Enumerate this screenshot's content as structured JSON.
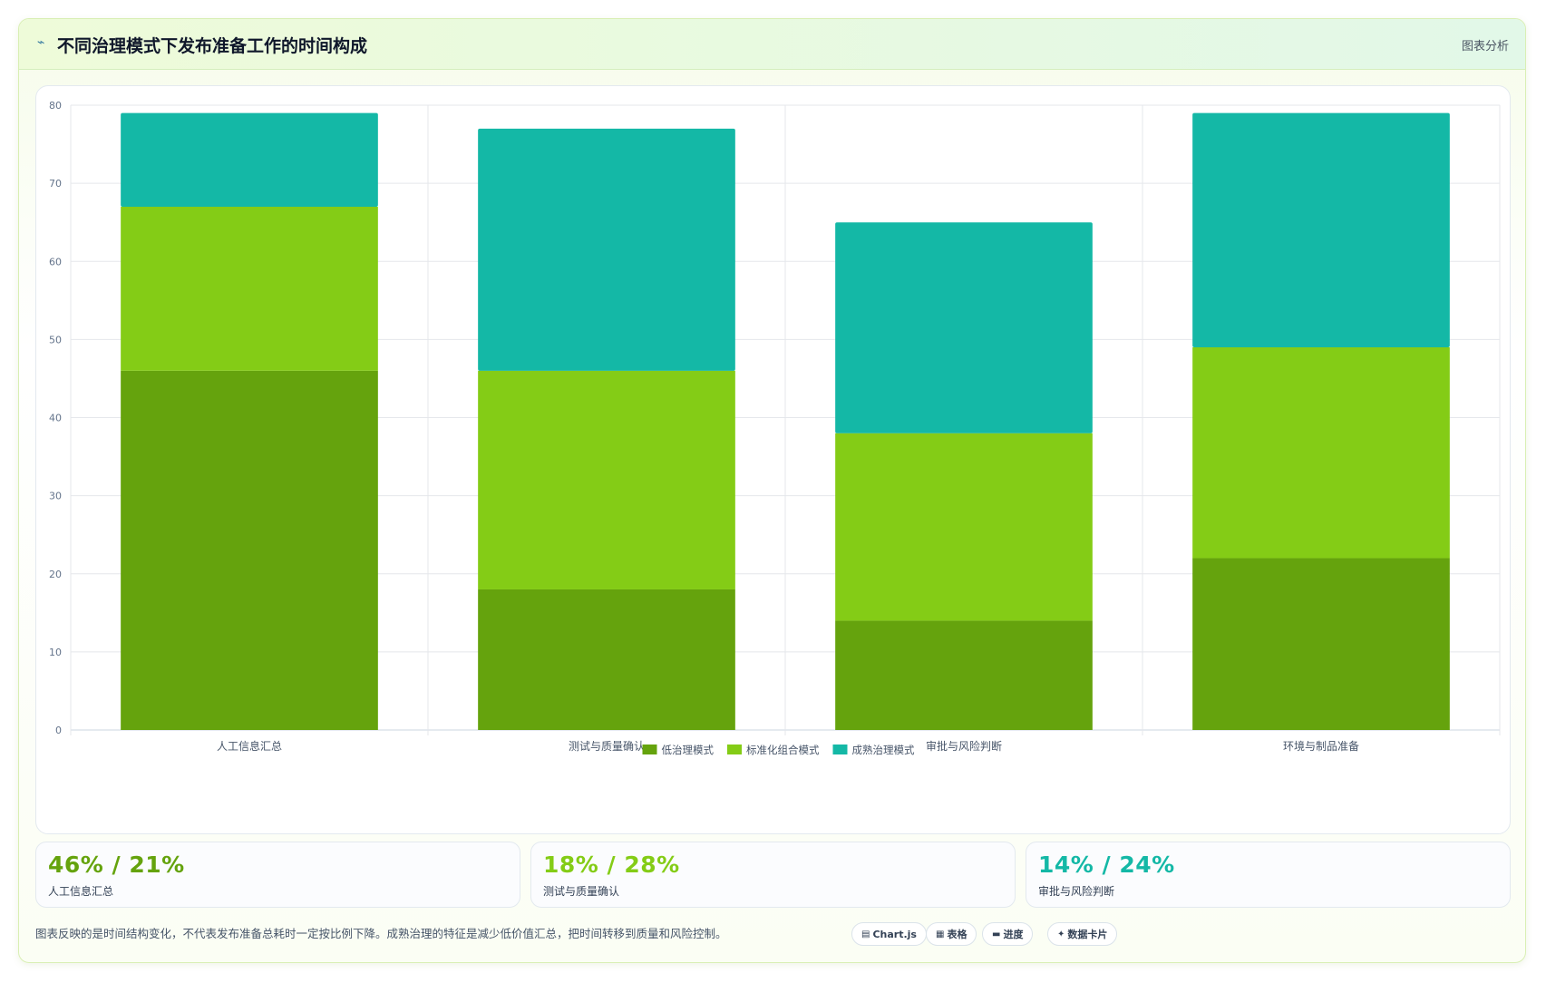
{
  "header": {
    "icon": "wave-icon",
    "title": "不同治理模式下发布准备工作的时间构成",
    "right_label": "图表分析"
  },
  "colors": {
    "low": "#65a30d",
    "standard": "#84cc16",
    "mature": "#14b8a6"
  },
  "chart_data": {
    "type": "bar",
    "stacked": true,
    "categories": [
      "人工信息汇总",
      "测试与质量确认",
      "审批与风险判断",
      "环境与制品准备"
    ],
    "series": [
      {
        "name": "低治理模式",
        "color": "#65a30d",
        "values": [
          46,
          18,
          14,
          22
        ]
      },
      {
        "name": "标准化组合模式",
        "color": "#84cc16",
        "values": [
          21,
          28,
          24,
          27
        ]
      },
      {
        "name": "成熟治理模式",
        "color": "#14b8a6",
        "values": [
          12,
          31,
          27,
          30
        ]
      }
    ],
    "ylim": [
      0,
      80
    ],
    "yticks": [
      0,
      10,
      20,
      30,
      40,
      50,
      60,
      70,
      80
    ],
    "grid": true,
    "legend": "bottom",
    "xlabel": "",
    "ylabel": ""
  },
  "stats": [
    {
      "value": "46% / 21%",
      "label": "人工信息汇总",
      "color": "#65a30d"
    },
    {
      "value": "18% / 28%",
      "label": "测试与质量确认",
      "color": "#84cc16"
    },
    {
      "value": "14% / 24%",
      "label": "审批与风险判断",
      "color": "#14b8a6"
    }
  ],
  "footnote": "图表反映的是时间结构变化，不代表发布准备总耗时一定按比例下降。成熟治理的特征是减少低价值汇总，把时间转移到质量和风险控制。",
  "tags": [
    {
      "icon": "chart-icon",
      "glyph": "▤",
      "label": "Chart.js"
    },
    {
      "icon": "table-icon",
      "glyph": "▦",
      "label": "表格"
    },
    {
      "icon": "progress-icon",
      "glyph": "▬",
      "label": "进度"
    },
    {
      "icon": "card-icon",
      "glyph": "✦",
      "label": "数据卡片"
    }
  ]
}
